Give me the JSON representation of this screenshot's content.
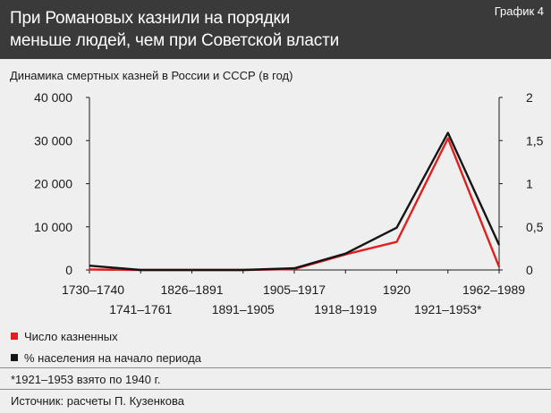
{
  "header": {
    "title_line1": "При Романовых казнили на порядки",
    "title_line2": "меньше людей, чем при Советской власти",
    "badge": "График 4"
  },
  "subtitle": "Динамика смертных казней в России и СССР (в год)",
  "chart_data": {
    "type": "line",
    "categories": [
      "1730–1740",
      "1741–1761",
      "1826–1891",
      "1891–1905",
      "1905–1917",
      "1918–1919",
      "1920",
      "1921–1953*",
      "1962–1989"
    ],
    "left_axis": {
      "ticks": [
        "0",
        "10 000",
        "20 000",
        "30 000",
        "40 000"
      ],
      "ylim": [
        0,
        40000
      ]
    },
    "right_axis": {
      "ticks": [
        "0",
        "0,5",
        "1",
        "1,5",
        "2"
      ],
      "ylim": [
        0,
        2
      ]
    },
    "series": [
      {
        "name": "Число казненных",
        "axis": "left",
        "color": "#e0201f",
        "values": [
          100,
          0,
          0,
          0,
          200,
          3600,
          6500,
          30500,
          700
        ]
      },
      {
        "name": "% населения на начало периода",
        "axis": "right",
        "color": "#141414",
        "values": [
          0.05,
          0.0,
          0.0,
          0.0,
          0.02,
          0.19,
          0.49,
          1.59,
          0.29
        ]
      }
    ],
    "grid": false,
    "legend_position": "bottom-left"
  },
  "note": "*1921–1953 взято по 1940 г.",
  "source": "Источник: расчеты П. Кузенкова"
}
